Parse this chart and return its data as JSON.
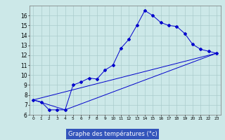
{
  "xlabel": "Graphe des températures (°c)",
  "bg_color": "#cce8e8",
  "grid_color": "#aacccc",
  "line_color": "#0000cc",
  "label_bg": "#3355bb",
  "line1": {
    "x": [
      0,
      1,
      2,
      3,
      4,
      5,
      6,
      7,
      8,
      9,
      10,
      11,
      12,
      13,
      14,
      15,
      16,
      17,
      18,
      19,
      20,
      21,
      22,
      23
    ],
    "y": [
      7.5,
      7.3,
      6.5,
      6.5,
      6.5,
      9.0,
      9.3,
      9.7,
      9.6,
      10.5,
      11.0,
      12.7,
      13.6,
      15.0,
      16.5,
      16.0,
      15.3,
      15.0,
      14.9,
      14.2,
      13.1,
      12.6,
      12.4,
      12.2
    ]
  },
  "line2": {
    "x": [
      0,
      23
    ],
    "y": [
      7.5,
      12.2
    ]
  },
  "line3": {
    "x": [
      0,
      4,
      23
    ],
    "y": [
      7.5,
      6.5,
      12.2
    ]
  },
  "ylim": [
    6,
    17
  ],
  "xlim": [
    -0.5,
    23.5
  ],
  "yticks": [
    6,
    7,
    8,
    9,
    10,
    11,
    12,
    13,
    14,
    15,
    16
  ],
  "xticks": [
    0,
    1,
    2,
    3,
    4,
    5,
    6,
    7,
    8,
    9,
    10,
    11,
    12,
    13,
    14,
    15,
    16,
    17,
    18,
    19,
    20,
    21,
    22,
    23
  ],
  "ytick_fontsize": 5.5,
  "xtick_fontsize": 4.2,
  "xlabel_fontsize": 6.0
}
